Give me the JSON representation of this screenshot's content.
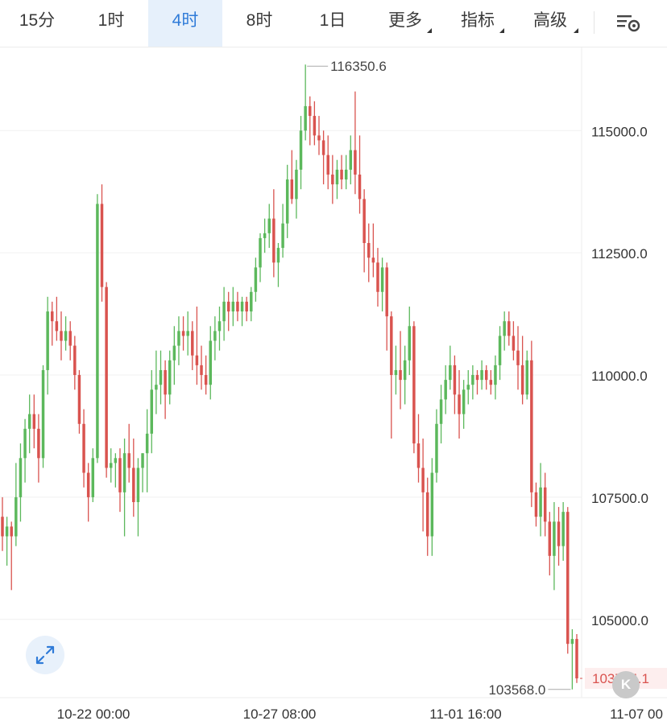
{
  "toolbar": {
    "tabs": [
      {
        "label": "15分",
        "active": false
      },
      {
        "label": "1时",
        "active": false
      },
      {
        "label": "4时",
        "active": true
      },
      {
        "label": "8时",
        "active": false
      },
      {
        "label": "1日",
        "active": false
      },
      {
        "label": "更多",
        "active": false,
        "caret": true
      },
      {
        "label": "指标",
        "active": false,
        "caret": true
      },
      {
        "label": "高级",
        "active": false,
        "caret": true
      }
    ],
    "settings_icon": "chart-settings-icon"
  },
  "colors": {
    "up": "#5cb85c",
    "down": "#d9534f",
    "accent": "#2f7bd8",
    "last_price": "#d9534f"
  },
  "chart_data": {
    "type": "candlestick",
    "y_ticks": [
      "115000.0",
      "112500.0",
      "110000.0",
      "107500.0",
      "105000.0"
    ],
    "x_ticks": [
      "10-22 00:00",
      "10-27 08:00",
      "11-01 16:00",
      "11-07 00"
    ],
    "ylim": [
      103400,
      116700
    ],
    "high_label": "116350.6",
    "low_label": "103568.0",
    "last_price_label": "103794.1",
    "grid": true,
    "candles": [
      [
        107100,
        107500,
        106400,
        106700
      ],
      [
        106700,
        107100,
        106100,
        106900
      ],
      [
        106900,
        107000,
        105600,
        106700
      ],
      [
        106700,
        108200,
        106500,
        107500
      ],
      [
        107500,
        108600,
        107000,
        108300
      ],
      [
        108300,
        109100,
        107800,
        108900
      ],
      [
        108900,
        109600,
        108400,
        109200
      ],
      [
        109200,
        109600,
        108500,
        108900
      ],
      [
        108900,
        109200,
        107800,
        108300
      ],
      [
        108300,
        110200,
        108100,
        110100
      ],
      [
        110100,
        111600,
        109600,
        111300
      ],
      [
        111300,
        111500,
        110600,
        111100
      ],
      [
        111100,
        111600,
        110700,
        110900
      ],
      [
        110900,
        111300,
        110300,
        110700
      ],
      [
        110700,
        111200,
        110500,
        110900
      ],
      [
        110900,
        111100,
        110300,
        110600
      ],
      [
        110600,
        110800,
        109700,
        110000
      ],
      [
        110000,
        110100,
        108800,
        109000
      ],
      [
        109000,
        109300,
        107700,
        108000
      ],
      [
        108000,
        108200,
        107000,
        107500
      ],
      [
        107500,
        108500,
        107400,
        108300
      ],
      [
        108300,
        113700,
        108200,
        113500
      ],
      [
        113500,
        113900,
        111500,
        111800
      ],
      [
        111800,
        111900,
        107900,
        108100
      ],
      [
        108100,
        108500,
        107800,
        108200
      ],
      [
        108200,
        108400,
        107700,
        108300
      ],
      [
        108300,
        108500,
        107200,
        107600
      ],
      [
        107600,
        108700,
        106700,
        108400
      ],
      [
        108400,
        109000,
        107800,
        108100
      ],
      [
        108100,
        108700,
        107100,
        107400
      ],
      [
        107400,
        108300,
        106700,
        108100
      ],
      [
        108100,
        108400,
        107600,
        108400
      ],
      [
        108400,
        109300,
        107600,
        108800
      ],
      [
        108800,
        110100,
        108400,
        109700
      ],
      [
        109700,
        110500,
        109200,
        109800
      ],
      [
        109800,
        110500,
        109400,
        110100
      ],
      [
        110100,
        110300,
        109100,
        109600
      ],
      [
        109600,
        110500,
        109400,
        110300
      ],
      [
        110300,
        111000,
        109800,
        110600
      ],
      [
        110600,
        111200,
        110200,
        110900
      ],
      [
        110900,
        111200,
        110500,
        110800
      ],
      [
        110800,
        111300,
        110400,
        110900
      ],
      [
        110900,
        111100,
        110100,
        110400
      ],
      [
        110400,
        111400,
        109800,
        110200
      ],
      [
        110200,
        110600,
        109700,
        110000
      ],
      [
        110000,
        110400,
        109600,
        109800
      ],
      [
        109800,
        111000,
        109500,
        110700
      ],
      [
        110700,
        111200,
        110300,
        110900
      ],
      [
        110900,
        111400,
        110500,
        111100
      ],
      [
        111100,
        111800,
        110700,
        111500
      ],
      [
        111500,
        111700,
        110900,
        111300
      ],
      [
        111300,
        111800,
        111000,
        111500
      ],
      [
        111500,
        111700,
        111100,
        111300
      ],
      [
        111300,
        111600,
        111000,
        111500
      ],
      [
        111500,
        111600,
        111100,
        111300
      ],
      [
        111300,
        111800,
        111100,
        111700
      ],
      [
        111700,
        112400,
        111500,
        112200
      ],
      [
        112200,
        112900,
        111900,
        112800
      ],
      [
        112800,
        113200,
        112500,
        112900
      ],
      [
        112900,
        113500,
        112600,
        113200
      ],
      [
        113200,
        113800,
        112000,
        112300
      ],
      [
        112300,
        112700,
        111800,
        112600
      ],
      [
        112600,
        113500,
        112400,
        113100
      ],
      [
        113100,
        114300,
        112800,
        114000
      ],
      [
        114000,
        114600,
        113500,
        113600
      ],
      [
        113600,
        114400,
        113200,
        114200
      ],
      [
        114200,
        115300,
        113800,
        115000
      ],
      [
        115000,
        116350.6,
        114800,
        115500
      ],
      [
        115500,
        115700,
        114700,
        115300
      ],
      [
        115300,
        115600,
        114700,
        114900
      ],
      [
        114900,
        115300,
        114500,
        114800
      ],
      [
        114800,
        115000,
        113900,
        114500
      ],
      [
        114500,
        114900,
        113800,
        114100
      ],
      [
        114100,
        114500,
        113500,
        113900
      ],
      [
        113900,
        114400,
        113600,
        114200
      ],
      [
        114200,
        114500,
        113800,
        114000
      ],
      [
        114000,
        114500,
        113800,
        114200
      ],
      [
        114200,
        114900,
        113900,
        114600
      ],
      [
        114600,
        115800,
        113700,
        114100
      ],
      [
        114100,
        114900,
        113300,
        113600
      ],
      [
        113600,
        113800,
        112100,
        112700
      ],
      [
        112700,
        113100,
        111900,
        112400
      ],
      [
        112400,
        113100,
        112000,
        112300
      ],
      [
        112300,
        112600,
        111400,
        111700
      ],
      [
        111700,
        112400,
        111300,
        112200
      ],
      [
        112200,
        112300,
        110500,
        111200
      ],
      [
        111200,
        111300,
        108700,
        110000
      ],
      [
        110000,
        110600,
        109600,
        110100
      ],
      [
        110100,
        110900,
        109300,
        109900
      ],
      [
        109900,
        110600,
        109400,
        110300
      ],
      [
        110300,
        111400,
        110000,
        111000
      ],
      [
        111000,
        111100,
        108400,
        108600
      ],
      [
        108600,
        109200,
        107800,
        108100
      ],
      [
        108100,
        108700,
        106800,
        107600
      ],
      [
        107600,
        107900,
        106300,
        106700
      ],
      [
        106700,
        108300,
        106300,
        108000
      ],
      [
        108000,
        109300,
        107800,
        109000
      ],
      [
        109000,
        109800,
        108600,
        109500
      ],
      [
        109500,
        110200,
        109200,
        109900
      ],
      [
        109900,
        110600,
        109700,
        110200
      ],
      [
        110200,
        110400,
        109200,
        109600
      ],
      [
        109600,
        110100,
        108700,
        109200
      ],
      [
        109200,
        109900,
        108900,
        109700
      ],
      [
        109700,
        110100,
        109400,
        109800
      ],
      [
        109800,
        110200,
        109500,
        110000
      ],
      [
        110000,
        110100,
        109600,
        109900
      ],
      [
        109900,
        110300,
        109700,
        110100
      ],
      [
        110100,
        110200,
        109700,
        109900
      ],
      [
        109900,
        110100,
        109600,
        109800
      ],
      [
        109800,
        110400,
        109500,
        110200
      ],
      [
        110200,
        111000,
        109900,
        110800
      ],
      [
        110800,
        111300,
        110500,
        111100
      ],
      [
        111100,
        111300,
        110600,
        110800
      ],
      [
        110800,
        111100,
        110300,
        110500
      ],
      [
        110500,
        111000,
        109700,
        110200
      ],
      [
        110200,
        110800,
        109400,
        109600
      ],
      [
        109600,
        110500,
        109500,
        110300
      ],
      [
        110300,
        110700,
        107300,
        107600
      ],
      [
        107600,
        107800,
        106900,
        107100
      ],
      [
        107100,
        108200,
        106700,
        107700
      ],
      [
        107700,
        108000,
        106700,
        107000
      ],
      [
        107000,
        107200,
        105900,
        106300
      ],
      [
        106300,
        107400,
        105600,
        107000
      ],
      [
        107000,
        107300,
        106100,
        106500
      ],
      [
        106500,
        107400,
        106200,
        107200
      ],
      [
        107200,
        107300,
        104300,
        104500
      ],
      [
        104500,
        104800,
        103568,
        104600
      ],
      [
        104600,
        104700,
        103700,
        103794.1
      ]
    ]
  }
}
